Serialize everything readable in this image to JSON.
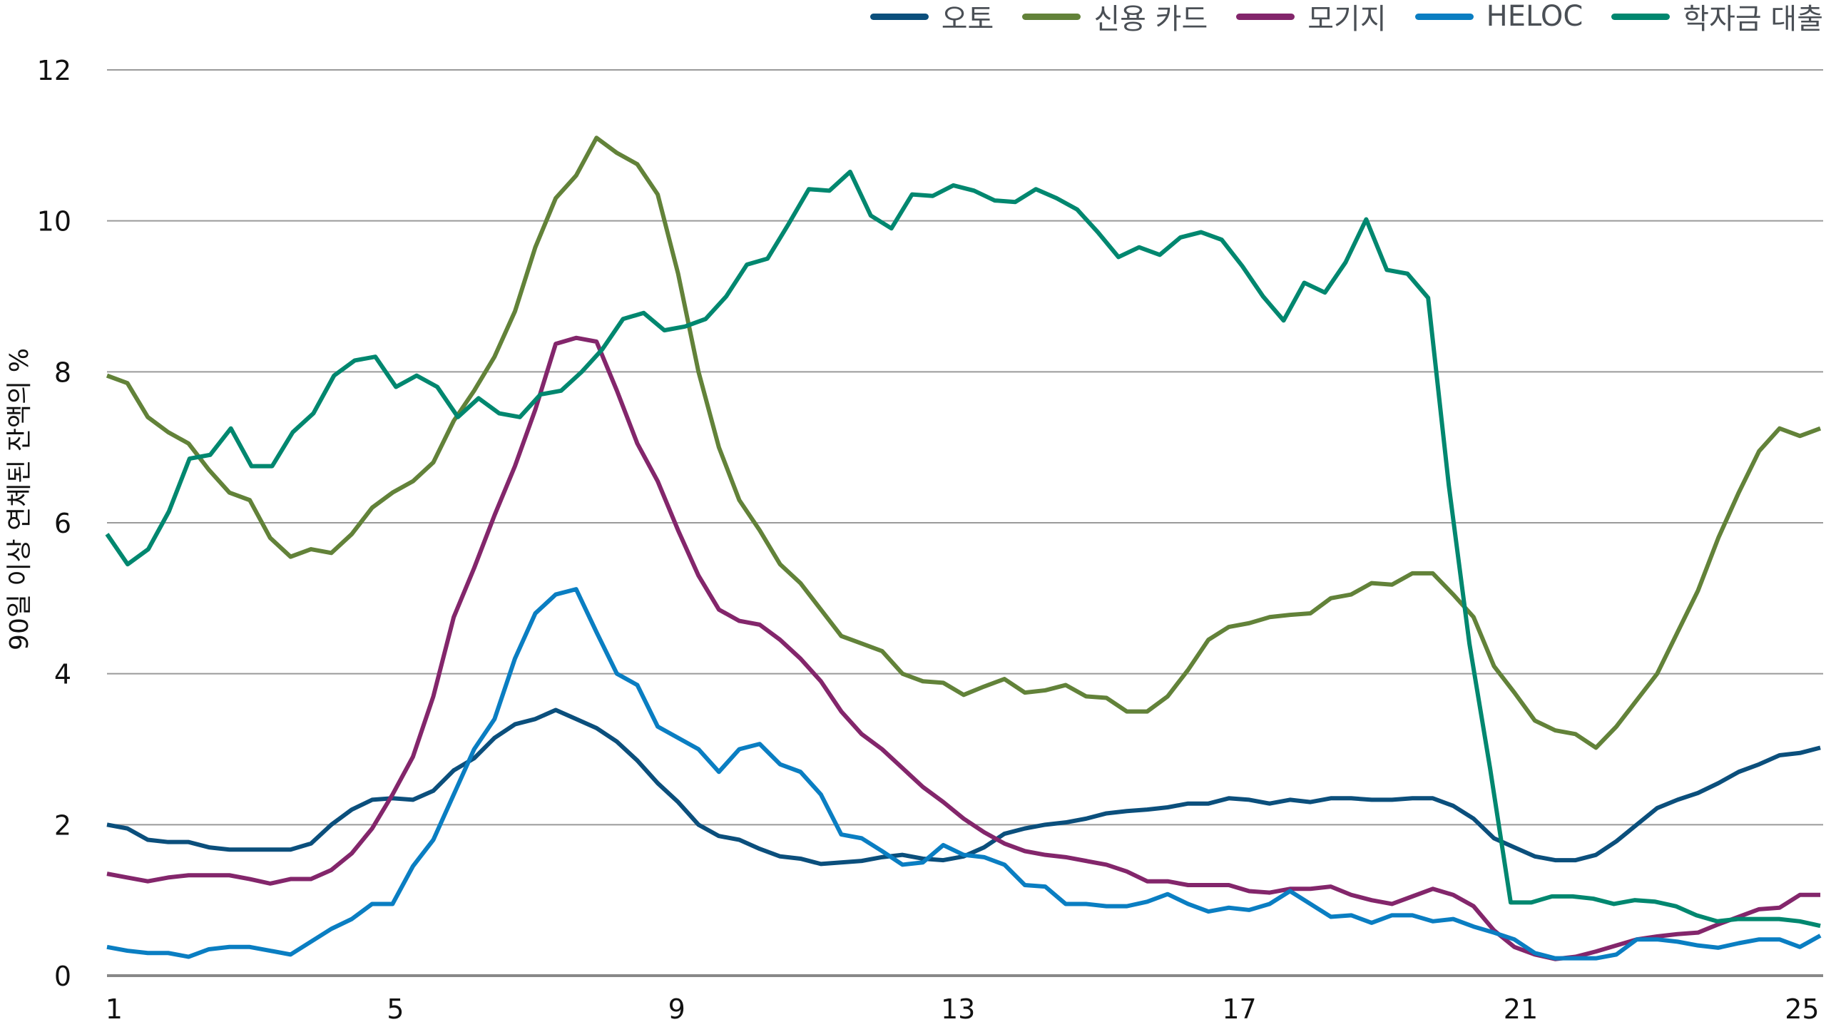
{
  "chart_data": {
    "type": "line",
    "ylabel": "90일 이상 연체된 잔액의 %",
    "xlabel": "",
    "ylim": [
      0,
      12
    ],
    "yticks": [
      0,
      2,
      4,
      6,
      8,
      10,
      12
    ],
    "xlim": [
      0.9,
      25.3
    ],
    "xticks": [
      1,
      5,
      9,
      13,
      17,
      21,
      25
    ],
    "x_range": [
      0.9,
      25.26
    ],
    "grid": true,
    "legend_position": "top-right",
    "series": [
      {
        "name": "오토",
        "color": "#0b4f7c",
        "values": [
          2.0,
          1.95,
          1.8,
          1.77,
          1.77,
          1.7,
          1.67,
          1.67,
          1.67,
          1.67,
          1.75,
          2.0,
          2.2,
          2.33,
          2.35,
          2.33,
          2.45,
          2.72,
          2.88,
          3.15,
          3.33,
          3.4,
          3.52,
          3.4,
          3.28,
          3.1,
          2.85,
          2.55,
          2.3,
          2.0,
          1.85,
          1.8,
          1.68,
          1.58,
          1.55,
          1.48,
          1.5,
          1.52,
          1.57,
          1.6,
          1.55,
          1.53,
          1.58,
          1.7,
          1.88,
          1.95,
          2.0,
          2.03,
          2.08,
          2.15,
          2.18,
          2.2,
          2.23,
          2.28,
          2.28,
          2.35,
          2.33,
          2.28,
          2.33,
          2.3,
          2.35,
          2.35,
          2.33,
          2.33,
          2.35,
          2.35,
          2.25,
          2.08,
          1.82,
          1.7,
          1.58,
          1.53,
          1.53,
          1.6,
          1.78,
          2.0,
          2.22,
          2.33,
          2.42,
          2.55,
          2.7,
          2.8,
          2.92,
          2.95,
          3.02
        ]
      },
      {
        "name": "신용 카드",
        "color": "#628239",
        "values": [
          7.95,
          7.85,
          7.4,
          7.2,
          7.05,
          6.7,
          6.4,
          6.3,
          5.8,
          5.55,
          5.65,
          5.6,
          5.85,
          6.2,
          6.4,
          6.55,
          6.8,
          7.35,
          7.75,
          8.2,
          8.8,
          9.65,
          10.3,
          10.6,
          11.1,
          10.9,
          10.75,
          10.35,
          9.3,
          8.0,
          7.0,
          6.3,
          5.9,
          5.45,
          5.2,
          4.85,
          4.5,
          4.4,
          4.3,
          4.0,
          3.9,
          3.88,
          3.72,
          3.83,
          3.93,
          3.75,
          3.78,
          3.85,
          3.7,
          3.68,
          3.5,
          3.5,
          3.7,
          4.05,
          4.45,
          4.62,
          4.67,
          4.75,
          4.78,
          4.8,
          5.0,
          5.05,
          5.2,
          5.18,
          5.33,
          5.33,
          5.05,
          4.75,
          4.1,
          3.75,
          3.38,
          3.25,
          3.2,
          3.02,
          3.3,
          3.65,
          4.0,
          4.55,
          5.1,
          5.8,
          6.4,
          6.95,
          7.25,
          7.15,
          7.25
        ]
      },
      {
        "name": "모기지",
        "color": "#83266b",
        "values": [
          1.35,
          1.3,
          1.25,
          1.3,
          1.33,
          1.33,
          1.33,
          1.28,
          1.22,
          1.28,
          1.28,
          1.4,
          1.62,
          1.95,
          2.4,
          2.9,
          3.7,
          4.75,
          5.4,
          6.1,
          6.75,
          7.5,
          8.37,
          8.45,
          8.4,
          7.75,
          7.05,
          6.55,
          5.9,
          5.3,
          4.85,
          4.7,
          4.65,
          4.45,
          4.2,
          3.9,
          3.5,
          3.2,
          3.0,
          2.75,
          2.5,
          2.3,
          2.08,
          1.9,
          1.75,
          1.65,
          1.6,
          1.57,
          1.52,
          1.47,
          1.38,
          1.25,
          1.25,
          1.2,
          1.2,
          1.2,
          1.12,
          1.1,
          1.15,
          1.15,
          1.18,
          1.07,
          1.0,
          0.95,
          1.05,
          1.15,
          1.07,
          0.92,
          0.6,
          0.38,
          0.28,
          0.22,
          0.25,
          0.32,
          0.4,
          0.48,
          0.52,
          0.55,
          0.57,
          0.68,
          0.78,
          0.88,
          0.9,
          1.07,
          1.07
        ]
      },
      {
        "name": "HELOC",
        "color": "#0a7ec2",
        "values": [
          0.38,
          0.33,
          0.3,
          0.3,
          0.25,
          0.35,
          0.38,
          0.38,
          0.33,
          0.28,
          0.45,
          0.62,
          0.75,
          0.95,
          0.95,
          1.45,
          1.8,
          2.4,
          3.0,
          3.4,
          4.2,
          4.8,
          5.05,
          5.12,
          4.55,
          4.0,
          3.85,
          3.3,
          3.15,
          3.0,
          2.7,
          3.0,
          3.07,
          2.8,
          2.7,
          2.4,
          1.87,
          1.82,
          1.65,
          1.47,
          1.5,
          1.73,
          1.6,
          1.57,
          1.47,
          1.2,
          1.18,
          0.95,
          0.95,
          0.92,
          0.92,
          0.98,
          1.08,
          0.95,
          0.85,
          0.9,
          0.87,
          0.95,
          1.12,
          0.95,
          0.78,
          0.8,
          0.7,
          0.8,
          0.8,
          0.72,
          0.75,
          0.65,
          0.57,
          0.48,
          0.3,
          0.23,
          0.23,
          0.23,
          0.28,
          0.48,
          0.48,
          0.45,
          0.4,
          0.37,
          0.43,
          0.48,
          0.48,
          0.38,
          0.53
        ]
      },
      {
        "name": "학자금 대출",
        "color": "#00876f",
        "values": [
          5.85,
          5.45,
          5.65,
          6.15,
          6.85,
          6.9,
          7.25,
          6.75,
          6.75,
          7.2,
          7.45,
          7.95,
          8.15,
          8.2,
          7.8,
          7.95,
          7.8,
          7.4,
          7.65,
          7.45,
          7.4,
          7.7,
          7.75,
          8.0,
          8.3,
          8.7,
          8.78,
          8.55,
          8.6,
          8.7,
          9.0,
          9.42,
          9.5,
          9.95,
          10.42,
          10.4,
          10.65,
          10.07,
          9.9,
          10.35,
          10.33,
          10.47,
          10.4,
          10.27,
          10.25,
          10.42,
          10.3,
          10.15,
          9.85,
          9.52,
          9.65,
          9.55,
          9.78,
          9.85,
          9.75,
          9.4,
          9.0,
          8.68,
          9.18,
          9.05,
          9.45,
          10.02,
          9.35,
          9.3,
          8.98,
          6.5,
          4.4,
          2.75,
          0.97,
          0.97,
          1.05,
          1.05,
          1.02,
          0.95,
          1.0,
          0.98,
          0.92,
          0.8,
          0.72,
          0.75,
          0.75,
          0.75,
          0.72,
          0.66
        ]
      }
    ]
  }
}
